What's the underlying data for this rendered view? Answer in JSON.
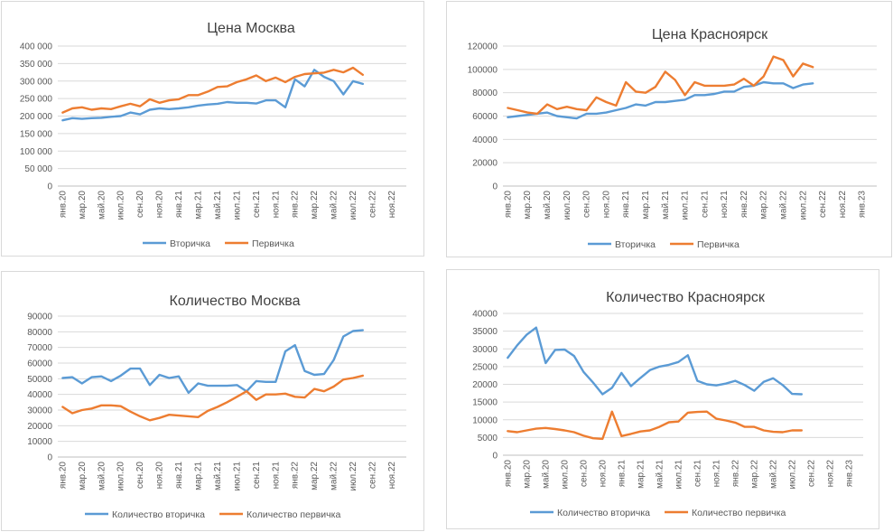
{
  "colors": {
    "secondary": "#5b9bd5",
    "primary": "#ed7d31"
  },
  "chart_data": [
    {
      "type": "line",
      "title": "Цена Москва",
      "xlabel": "",
      "ylabel": "",
      "ylim": [
        0,
        400000
      ],
      "yticks": [
        "0",
        "50 000",
        "100 000",
        "150 000",
        "200 000",
        "250 000",
        "300 000",
        "350 000",
        "400 000"
      ],
      "x_tick_labels": [
        "янв.20",
        "мар.20",
        "май.20",
        "июл.20",
        "сен.20",
        "ноя.20",
        "янв.21",
        "мар.21",
        "май.21",
        "июл.21",
        "сен.21",
        "ноя.21",
        "янв.22",
        "мар.22",
        "май.22",
        "июл.22",
        "сен.22",
        "ноя.22"
      ],
      "x": [
        "2020-01",
        "2020-02",
        "2020-03",
        "2020-04",
        "2020-05",
        "2020-06",
        "2020-07",
        "2020-08",
        "2020-09",
        "2020-10",
        "2020-11",
        "2020-12",
        "2021-01",
        "2021-02",
        "2021-03",
        "2021-04",
        "2021-05",
        "2021-06",
        "2021-07",
        "2021-08",
        "2021-09",
        "2021-10",
        "2021-11",
        "2021-12",
        "2022-01",
        "2022-02",
        "2022-03",
        "2022-04",
        "2022-05",
        "2022-06",
        "2022-07",
        "2022-08"
      ],
      "grid": true,
      "legend_position": "bottom",
      "series": [
        {
          "name": "Вторичка",
          "color": "secondary",
          "values": [
            188000,
            194000,
            192000,
            194000,
            195000,
            198000,
            200000,
            210000,
            205000,
            218000,
            222000,
            220000,
            222000,
            225000,
            230000,
            233000,
            235000,
            240000,
            238000,
            238000,
            236000,
            245000,
            245000,
            225000,
            305000,
            285000,
            332000,
            312000,
            300000,
            262000,
            300000,
            292000
          ]
        },
        {
          "name": "Первичка",
          "color": "primary",
          "values": [
            210000,
            222000,
            225000,
            218000,
            222000,
            220000,
            228000,
            235000,
            228000,
            248000,
            238000,
            245000,
            248000,
            260000,
            260000,
            270000,
            283000,
            285000,
            297000,
            305000,
            316000,
            300000,
            310000,
            297000,
            312000,
            320000,
            322000,
            324000,
            332000,
            325000,
            338000,
            318000
          ]
        }
      ]
    },
    {
      "type": "line",
      "title": "Цена Красноярск",
      "xlabel": "",
      "ylabel": "",
      "ylim": [
        0,
        120000
      ],
      "yticks": [
        "0",
        "20000",
        "40000",
        "60000",
        "80000",
        "100000",
        "120000"
      ],
      "x_tick_labels": [
        "янв.20",
        "мар.20",
        "май.20",
        "июл.20",
        "сен.20",
        "ноя.20",
        "янв.21",
        "мар.21",
        "май.21",
        "июл.21",
        "сен.21",
        "ноя.21",
        "янв.22",
        "мар.22",
        "май.22",
        "июл.22",
        "сен.22",
        "ноя.22",
        "янв.23"
      ],
      "x": [
        "2020-01",
        "2020-02",
        "2020-03",
        "2020-04",
        "2020-05",
        "2020-06",
        "2020-07",
        "2020-08",
        "2020-09",
        "2020-10",
        "2020-11",
        "2020-12",
        "2021-01",
        "2021-02",
        "2021-03",
        "2021-04",
        "2021-05",
        "2021-06",
        "2021-07",
        "2021-08",
        "2021-09",
        "2021-10",
        "2021-11",
        "2021-12",
        "2022-01",
        "2022-02",
        "2022-03",
        "2022-04",
        "2022-05",
        "2022-06",
        "2022-07",
        "2022-08"
      ],
      "grid": true,
      "legend_position": "bottom",
      "series": [
        {
          "name": "Вторичка",
          "color": "secondary",
          "values": [
            59000,
            60000,
            61000,
            62000,
            63000,
            60000,
            59000,
            58000,
            62000,
            62000,
            63000,
            65000,
            67000,
            70000,
            69000,
            72000,
            72000,
            73000,
            74000,
            78000,
            78000,
            79000,
            81000,
            81000,
            85000,
            86000,
            89000,
            88000,
            88000,
            84000,
            87000,
            88000
          ]
        },
        {
          "name": "Первичка",
          "color": "primary",
          "values": [
            67000,
            65000,
            63000,
            62000,
            70000,
            66000,
            68000,
            66000,
            65000,
            76000,
            72000,
            69000,
            89000,
            81000,
            80000,
            85000,
            98000,
            91000,
            78000,
            89000,
            86000,
            86000,
            86000,
            87000,
            92000,
            86000,
            94000,
            111000,
            108000,
            94000,
            105000,
            102000
          ]
        }
      ]
    },
    {
      "type": "line",
      "title": "Количество Москва",
      "xlabel": "",
      "ylabel": "",
      "ylim": [
        0,
        90000
      ],
      "yticks": [
        "0",
        "10000",
        "20000",
        "30000",
        "40000",
        "50000",
        "60000",
        "70000",
        "80000",
        "90000"
      ],
      "x_tick_labels": [
        "янв.20",
        "мар.20",
        "май.20",
        "июл.20",
        "сен.20",
        "ноя.20",
        "янв.21",
        "мар.21",
        "май.21",
        "июл.21",
        "сен.21",
        "ноя.21",
        "янв.22",
        "мар.22",
        "май.22",
        "июл.22",
        "сен.22",
        "ноя.22"
      ],
      "x": [
        "2020-01",
        "2020-02",
        "2020-03",
        "2020-04",
        "2020-05",
        "2020-06",
        "2020-07",
        "2020-08",
        "2020-09",
        "2020-10",
        "2020-11",
        "2020-12",
        "2021-01",
        "2021-02",
        "2021-03",
        "2021-04",
        "2021-05",
        "2021-06",
        "2021-07",
        "2021-08",
        "2021-09",
        "2021-10",
        "2021-11",
        "2021-12",
        "2022-01",
        "2022-02",
        "2022-03",
        "2022-04",
        "2022-05",
        "2022-06",
        "2022-07",
        "2022-08"
      ],
      "grid": true,
      "legend_position": "bottom",
      "series": [
        {
          "name": "Количество вторичка",
          "color": "secondary",
          "values": [
            50500,
            51000,
            47000,
            51000,
            51500,
            48500,
            52000,
            56500,
            56500,
            46000,
            52500,
            50500,
            51500,
            41000,
            47000,
            45500,
            45500,
            45500,
            46000,
            42000,
            48500,
            48000,
            48000,
            67500,
            71500,
            55000,
            52500,
            53000,
            62000,
            77000,
            80500,
            81000
          ]
        },
        {
          "name": "Количество первичка",
          "color": "primary",
          "values": [
            32000,
            28000,
            30000,
            31000,
            33000,
            33000,
            32500,
            29000,
            26000,
            23500,
            25000,
            27000,
            26500,
            26000,
            25500,
            29500,
            32000,
            35000,
            38500,
            42000,
            36500,
            40000,
            40000,
            40500,
            38500,
            38000,
            43500,
            42000,
            45000,
            49500,
            50500,
            52000
          ]
        }
      ]
    },
    {
      "type": "line",
      "title": "Количество Красноярск",
      "xlabel": "",
      "ylabel": "",
      "ylim": [
        0,
        40000
      ],
      "yticks": [
        "0",
        "5000",
        "10000",
        "15000",
        "20000",
        "25000",
        "30000",
        "35000",
        "40000"
      ],
      "x_tick_labels": [
        "янв.20",
        "мар.20",
        "май.20",
        "июл.20",
        "сен.20",
        "ноя.20",
        "янв.21",
        "мар.21",
        "май.21",
        "июл.21",
        "сен.21",
        "ноя.21",
        "янв.22",
        "мар.22",
        "май.22",
        "июл.22",
        "сен.22",
        "ноя.22",
        "янв.23"
      ],
      "x": [
        "2020-01",
        "2020-02",
        "2020-03",
        "2020-04",
        "2020-05",
        "2020-06",
        "2020-07",
        "2020-08",
        "2020-09",
        "2020-10",
        "2020-11",
        "2020-12",
        "2021-01",
        "2021-02",
        "2021-03",
        "2021-04",
        "2021-05",
        "2021-06",
        "2021-07",
        "2021-08",
        "2021-09",
        "2021-10",
        "2021-11",
        "2021-12",
        "2022-01",
        "2022-02",
        "2022-03",
        "2022-04",
        "2022-05",
        "2022-06",
        "2022-07",
        "2022-08"
      ],
      "grid": true,
      "legend_position": "bottom",
      "series": [
        {
          "name": "Количество вторичка",
          "color": "secondary",
          "values": [
            27500,
            31000,
            34000,
            36000,
            26000,
            29700,
            29800,
            28000,
            23500,
            20500,
            17200,
            19000,
            23200,
            19500,
            21800,
            24000,
            25000,
            25500,
            26300,
            28200,
            21000,
            20000,
            19700,
            20200,
            21000,
            19800,
            18200,
            20700,
            21700,
            19800,
            17300,
            17200
          ]
        },
        {
          "name": "Количество первичка",
          "color": "primary",
          "values": [
            6800,
            6500,
            7000,
            7500,
            7700,
            7400,
            7000,
            6500,
            5500,
            4800,
            4600,
            12300,
            5400,
            6000,
            6700,
            7000,
            8000,
            9300,
            9500,
            12000,
            12200,
            12300,
            10300,
            9800,
            9200,
            8000,
            8000,
            7000,
            6600,
            6500,
            7000,
            7000
          ]
        }
      ]
    }
  ]
}
